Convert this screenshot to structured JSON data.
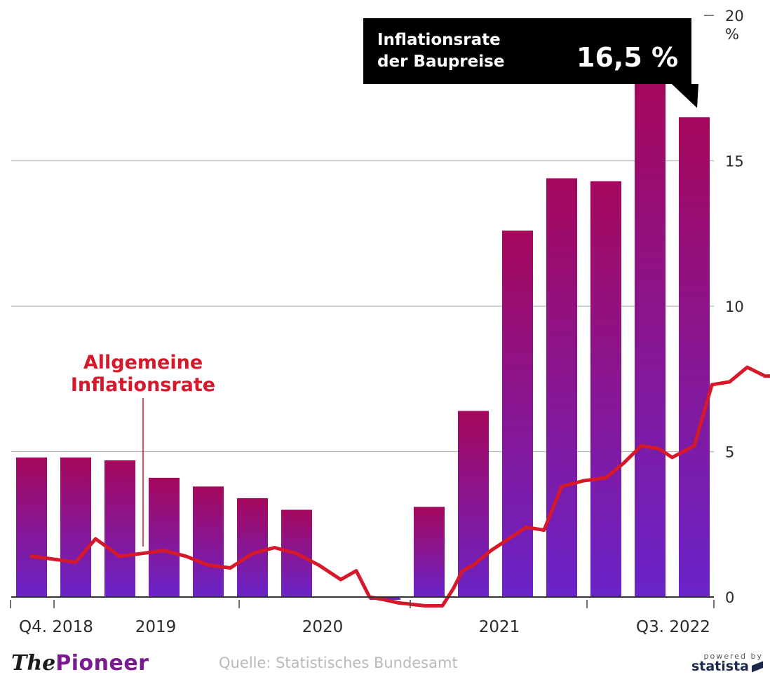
{
  "callout": {
    "line1": "Inflationsrate",
    "line2": "der Baupreise",
    "value": "16,5 %"
  },
  "line_label": {
    "line1": "Allgemeine",
    "line2": "Inflationsrate"
  },
  "footer": {
    "brand_the": "The",
    "brand_pioneer": "Pioneer",
    "source": "Quelle: Statistisches Bundesamt",
    "powered_by": "powered by",
    "statista": "statista"
  },
  "colors": {
    "bar_top": "#a5085c",
    "bar_bottom": "#6a24c9",
    "line": "#d5182a",
    "callout_bg": "#000000",
    "grid": "#b5b5b5"
  },
  "chart_data": {
    "type": "bar",
    "y_axis": {
      "min": 0,
      "max": 20,
      "ticks": [
        "0",
        "5",
        "10",
        "15",
        "20"
      ],
      "unit": "%",
      "position": "right"
    },
    "x_tick_labels": [
      {
        "label": "Q4. 2018",
        "at": 0
      },
      {
        "label": "2019",
        "at": 3
      },
      {
        "label": "2020",
        "at": 7
      },
      {
        "label": "2021",
        "at": 11
      },
      {
        "label": "Q3. 2022",
        "at": 15
      }
    ],
    "series": [
      {
        "kind": "bar",
        "values": [
          4.8,
          4.8,
          4.7,
          4.1,
          3.8,
          3.4,
          3.0,
          0,
          -0.1,
          3.1,
          6.4,
          12.6,
          14.4,
          14.3,
          17.7,
          16.5
        ]
      },
      {
        "name": "Allgemeine Inflationsrate",
        "kind": "line",
        "points": [
          [
            0,
            1.4
          ],
          [
            0.5,
            1.3
          ],
          [
            1,
            1.2
          ],
          [
            1.45,
            2.0
          ],
          [
            2,
            1.4
          ],
          [
            2.5,
            1.5
          ],
          [
            3,
            1.6
          ],
          [
            3.5,
            1.4
          ],
          [
            4,
            1.1
          ],
          [
            4.5,
            1.0
          ],
          [
            5,
            1.5
          ],
          [
            5.5,
            1.7
          ],
          [
            6,
            1.5
          ],
          [
            6.5,
            1.1
          ],
          [
            7,
            0.6
          ],
          [
            7.35,
            0.9
          ],
          [
            7.65,
            0.0
          ],
          [
            8,
            -0.1
          ],
          [
            8.3,
            -0.2
          ],
          [
            8.6,
            -0.25
          ],
          [
            8.9,
            -0.3
          ],
          [
            9.3,
            -0.3
          ],
          [
            9.55,
            0.3
          ],
          [
            9.75,
            0.9
          ],
          [
            10,
            1.1
          ],
          [
            10.4,
            1.6
          ],
          [
            10.8,
            2.0
          ],
          [
            11.2,
            2.4
          ],
          [
            11.6,
            2.3
          ],
          [
            12,
            3.8
          ],
          [
            12.5,
            4.0
          ],
          [
            13,
            4.1
          ],
          [
            13.4,
            4.6
          ],
          [
            13.8,
            5.2
          ],
          [
            14.2,
            5.1
          ],
          [
            14.5,
            4.8
          ],
          [
            15,
            5.2
          ],
          [
            15.4,
            7.3
          ],
          [
            15.8,
            7.4
          ],
          [
            16.2,
            7.9
          ],
          [
            16.6,
            7.6
          ],
          [
            17,
            7.6
          ],
          [
            17.3,
            7.9
          ]
        ]
      }
    ],
    "annotation": {
      "text": "16,5 %",
      "bar_index": 15
    }
  }
}
